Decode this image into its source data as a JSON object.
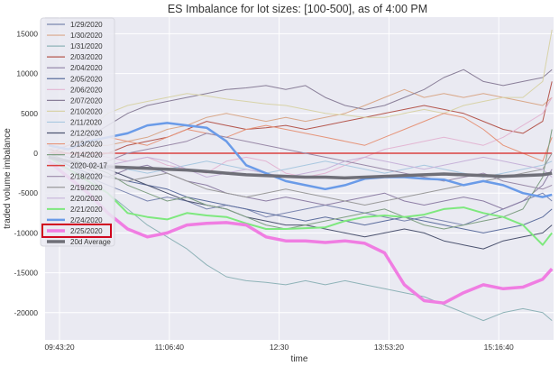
{
  "chart_data": {
    "type": "line",
    "title": "ES Imbalance for lot sizes: [100-500], as of 4:00 PM",
    "xlabel": "time",
    "ylabel": "traded volume imbalance",
    "ylim": [
      -23400,
      19000
    ],
    "xlim": [
      "09:32:24",
      "15:57:48"
    ],
    "xticks": [
      "09:43:20",
      "11:06:40",
      "12:30",
      "13:53:20",
      "15:16:40"
    ],
    "yticks": [
      -20000,
      -15000,
      -10000,
      -5000,
      0,
      5000,
      10000,
      15000
    ],
    "grid": true,
    "legend_position": "top-left",
    "highlighted_legend_entry": "2/25/2020",
    "x": [
      "09:35",
      "09:50",
      "10:05",
      "10:20",
      "10:35",
      "10:50",
      "11:05",
      "11:20",
      "11:35",
      "11:50",
      "12:05",
      "12:20",
      "12:35",
      "12:50",
      "13:05",
      "13:20",
      "13:35",
      "13:50",
      "14:05",
      "14:20",
      "14:35",
      "14:50",
      "15:05",
      "15:20",
      "15:35",
      "15:50",
      "15:57"
    ],
    "series": [
      {
        "name": "1/29/2020",
        "color": "#7b86b0",
        "width": 1,
        "values": [
          -1000,
          -2000,
          -3000,
          -4000,
          -5000,
          -6000,
          -5500,
          -6000,
          -7000,
          -6500,
          -7000,
          -8000,
          -7500,
          -7000,
          -6500,
          -7000,
          -7500,
          -8000,
          -8500,
          -8000,
          -8500,
          -9000,
          -8000,
          -7000,
          -6000,
          -5000,
          -6000
        ]
      },
      {
        "name": "1/30/2020",
        "color": "#d9a88a",
        "width": 1,
        "values": [
          0,
          500,
          1000,
          1000,
          1500,
          2000,
          3000,
          3500,
          4500,
          5000,
          4500,
          4000,
          4500,
          4000,
          4500,
          5000,
          6000,
          7000,
          8000,
          7000,
          7500,
          7000,
          7500,
          7000,
          6500,
          6000,
          7000
        ]
      },
      {
        "name": "1/31/2020",
        "color": "#8fb3b8",
        "width": 1,
        "values": [
          0,
          -1500,
          -3000,
          -5000,
          -7000,
          -9000,
          -10500,
          -12000,
          -14000,
          -15500,
          -16000,
          -16200,
          -16500,
          -16000,
          -16500,
          -16000,
          -16500,
          -17000,
          -17500,
          -18000,
          -19000,
          -20000,
          -21000,
          -20000,
          -19500,
          -20000,
          -21000
        ]
      },
      {
        "name": "2/03/2020",
        "color": "#b5584f",
        "width": 1,
        "values": [
          500,
          0,
          -500,
          0,
          1000,
          1500,
          2000,
          3000,
          4000,
          3500,
          3000,
          3200,
          3500,
          3000,
          3500,
          4000,
          4500,
          5000,
          5500,
          6000,
          5500,
          5000,
          4000,
          3000,
          2500,
          4000,
          9000
        ]
      },
      {
        "name": "2/04/2020",
        "color": "#8e7fa5",
        "width": 1,
        "values": [
          0,
          -1000,
          -2000,
          -3000,
          -2000,
          -1500,
          -2500,
          -3500,
          -4000,
          -5000,
          -5500,
          -6000,
          -5500,
          -6000,
          -6500,
          -6000,
          -5500,
          -5000,
          -6000,
          -6500,
          -6000,
          -5500,
          -6000,
          -7000,
          -6000,
          -4000,
          -2000
        ]
      },
      {
        "name": "2/05/2020",
        "color": "#5d6e9e",
        "width": 1,
        "values": [
          -500,
          -1500,
          -2500,
          -3000,
          -3500,
          -4000,
          -4500,
          -5500,
          -6000,
          -6500,
          -7000,
          -7500,
          -8000,
          -8500,
          -8000,
          -8500,
          -9000,
          -8500,
          -8000,
          -8500,
          -9000,
          -9500,
          -10000,
          -9500,
          -9000,
          -8000,
          -7000
        ]
      },
      {
        "name": "2/06/2020",
        "color": "#e3b6d3",
        "width": 1,
        "values": [
          500,
          1000,
          0,
          -500,
          -1000,
          -500,
          -1500,
          -2000,
          -2500,
          -1000,
          -500,
          -1000,
          -2500,
          -3000,
          -2500,
          -1500,
          -500,
          500,
          1000,
          1500,
          2000,
          1500,
          1000,
          2000,
          3500,
          5000,
          7000
        ]
      },
      {
        "name": "2/07/2020",
        "color": "#8a7f99",
        "width": 1,
        "values": [
          0,
          1000,
          2000,
          3500,
          5000,
          6000,
          6500,
          7000,
          7500,
          8000,
          8200,
          8500,
          8000,
          8500,
          7000,
          6000,
          5500,
          6000,
          7000,
          8000,
          9500,
          10500,
          9000,
          8500,
          9000,
          9500,
          10500
        ]
      },
      {
        "name": "2/10/2020",
        "color": "#d8d3a8",
        "width": 1,
        "values": [
          500,
          1500,
          3000,
          5000,
          6000,
          6500,
          7000,
          7500,
          7200,
          6800,
          6500,
          6200,
          6000,
          5500,
          5000,
          4800,
          4500,
          4500,
          5000,
          5500,
          5000,
          6000,
          6500,
          7000,
          7000,
          9000,
          15500
        ]
      },
      {
        "name": "2/11/2020",
        "color": "#a9c8e0",
        "width": 1,
        "values": [
          0,
          -500,
          -1000,
          -1500,
          -2000,
          -2500,
          -2000,
          -1500,
          -1000,
          -1500,
          -2000,
          -2500,
          -2000,
          -1500,
          -1000,
          -1500,
          -2000,
          -2500,
          -2000,
          -1500,
          -2000,
          -2500,
          -3000,
          -2500,
          -2000,
          -1500,
          -1000
        ]
      },
      {
        "name": "2/12/2020",
        "color": "#4d5470",
        "width": 1,
        "values": [
          0,
          -500,
          -1500,
          -2000,
          -3000,
          -4000,
          -5000,
          -6000,
          -6500,
          -7000,
          -8000,
          -8500,
          -9000,
          -9000,
          -9500,
          -10000,
          -10500,
          -10000,
          -9500,
          -10000,
          -11000,
          -11500,
          -12000,
          -11000,
          -10500,
          -10000,
          -9000
        ]
      },
      {
        "name": "2/13/2020",
        "color": "#e6957a",
        "width": 1,
        "values": [
          0,
          1000,
          1500,
          2000,
          1500,
          1000,
          2000,
          3000,
          2500,
          2000,
          3000,
          3500,
          3000,
          2500,
          2000,
          1500,
          1000,
          2000,
          3000,
          4000,
          5000,
          4500,
          3000,
          1000,
          0,
          -1000,
          2000
        ]
      },
      {
        "name": "2/14/2020",
        "color": "#7f9f83",
        "width": 1,
        "values": [
          0,
          -500,
          -1500,
          -2500,
          -4000,
          -5000,
          -6000,
          -5500,
          -6500,
          -7000,
          -8000,
          -9000,
          -9500,
          -9000,
          -8500,
          -8000,
          -7500,
          -7000,
          -8000,
          -9000,
          -9500,
          -9000,
          -8500,
          -8000,
          -7000,
          -3000,
          3000
        ]
      },
      {
        "name": "2020-02-17",
        "color": "#d9413f",
        "width": 1.5,
        "values": [
          0,
          0,
          0,
          0,
          0,
          0,
          0,
          0,
          0,
          0,
          0,
          0,
          0,
          0,
          0,
          0,
          0,
          0,
          0,
          0,
          0,
          0,
          0,
          0,
          0,
          0,
          0
        ]
      },
      {
        "name": "2/18/2020",
        "color": "#9a8aa8",
        "width": 1,
        "values": [
          0,
          -1000,
          -2000,
          -1000,
          0,
          500,
          1000,
          1500,
          2500,
          2000,
          1500,
          1000,
          500,
          0,
          -500,
          -1000,
          -1500,
          -2000,
          -2500,
          -3000,
          -3500,
          -3000,
          -2500,
          -3500,
          -4000,
          -4500,
          -4000
        ]
      },
      {
        "name": "2/19/2020",
        "color": "#9a9a9a",
        "width": 1,
        "values": [
          0,
          -1000,
          -2000,
          -3000,
          -3500,
          -3000,
          -2500,
          -3500,
          -4500,
          -5000,
          -5500,
          -5000,
          -4500,
          -5000,
          -5500,
          -6000,
          -6500,
          -6000,
          -5500,
          -5000,
          -4500,
          -4000,
          -3500,
          -3000,
          -2500,
          -2000,
          0
        ]
      },
      {
        "name": "2/20/2020",
        "color": "#c7b3d9",
        "width": 1,
        "values": [
          0,
          -500,
          -1000,
          -1500,
          -1000,
          -500,
          -1000,
          -2000,
          -3000,
          -2500,
          -2000,
          -2500,
          -3000,
          -2500,
          -2000,
          -1000,
          -500,
          -1000,
          -1500,
          -2000,
          -1500,
          -1000,
          -500,
          -1000,
          -1500,
          -2000,
          -3000
        ]
      },
      {
        "name": "2/21/2020",
        "color": "#7ee87e",
        "width": 2,
        "values": [
          -500,
          -2000,
          -3500,
          -5000,
          -7500,
          -8000,
          -8300,
          -7500,
          -7800,
          -8000,
          -8800,
          -9500,
          -9500,
          -9400,
          -9300,
          -8500,
          -8000,
          -7800,
          -8000,
          -7700,
          -7000,
          -6800,
          -7500,
          -8000,
          -9000,
          -11500,
          -10000
        ]
      },
      {
        "name": "2/24/2020",
        "color": "#6a9be8",
        "width": 2.5,
        "values": [
          1000,
          500,
          1500,
          2000,
          2500,
          3500,
          3800,
          3500,
          3200,
          1500,
          -1500,
          -2500,
          -3500,
          -4000,
          -4500,
          -4000,
          -3200,
          -3000,
          -3000,
          -3200,
          -3300,
          -4000,
          -3500,
          -4000,
          -5000,
          -5500,
          -5200
        ]
      },
      {
        "name": "2/25/2020",
        "color": "#f07de2",
        "width": 3.5,
        "values": [
          -1000,
          -3000,
          -5000,
          -7500,
          -9500,
          -10500,
          -10000,
          -9000,
          -8800,
          -8700,
          -9000,
          -10500,
          -11000,
          -11000,
          -11200,
          -11000,
          -11300,
          -12500,
          -16500,
          -18500,
          -18800,
          -17500,
          -16500,
          -17000,
          -16800,
          -15800,
          -14500
        ]
      },
      {
        "name": "20d Average",
        "color": "#6f6f78",
        "width": 3.5,
        "values": [
          -500,
          -1000,
          -1500,
          -1700,
          -1800,
          -1900,
          -2000,
          -2100,
          -2300,
          -2500,
          -2700,
          -2800,
          -2900,
          -3000,
          -3000,
          -3100,
          -3000,
          -2900,
          -2800,
          -2700,
          -2600,
          -2700,
          -2800,
          -2900,
          -2800,
          -2700,
          -2500
        ]
      }
    ]
  },
  "highlight_color": "#d0021b"
}
